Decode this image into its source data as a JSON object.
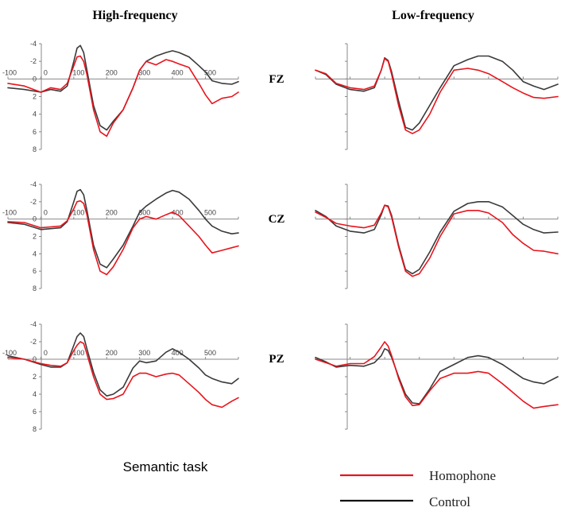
{
  "column_titles": [
    "High-frequency",
    "Low-frequency"
  ],
  "electrodes": [
    "FZ",
    "CZ",
    "PZ"
  ],
  "task_label": "Semantic task",
  "legend": [
    {
      "label": "Homophone",
      "color": "#e8141c"
    },
    {
      "label": "Control",
      "color": "#3a3a3a"
    }
  ],
  "chart_data": {
    "type": "line",
    "x_unit_ticks": [
      -100,
      0,
      100,
      200,
      300,
      400,
      500
    ],
    "xlim": [
      -100,
      600
    ],
    "ylim": [
      -4,
      8
    ],
    "y_ticks": [
      -4,
      -2,
      0,
      2,
      4,
      6,
      8
    ],
    "y_inverted": true,
    "panels": [
      {
        "column": "High-frequency",
        "electrode": "FZ",
        "series": [
          {
            "name": "Homophone",
            "x": [
              -100,
              -50,
              0,
              30,
              60,
              80,
              100,
              110,
              120,
              130,
              140,
              160,
              180,
              200,
              220,
              250,
              280,
              300,
              320,
              350,
              380,
              400,
              420,
              450,
              480,
              500,
              520,
              550,
              580,
              600
            ],
            "y": [
              0.5,
              0.8,
              1.5,
              1.0,
              1.2,
              0.5,
              -1.5,
              -2.5,
              -2.6,
              -2.0,
              -0.5,
              3.5,
              6.0,
              6.5,
              5.0,
              3.5,
              1.0,
              -1.0,
              -2.0,
              -1.6,
              -2.2,
              -2.0,
              -1.7,
              -1.3,
              0.5,
              1.8,
              2.8,
              2.2,
              2.0,
              1.5
            ]
          },
          {
            "name": "Control",
            "x": [
              -100,
              -50,
              0,
              30,
              60,
              80,
              100,
              110,
              120,
              130,
              140,
              160,
              180,
              200,
              220,
              250,
              280,
              300,
              320,
              350,
              380,
              400,
              420,
              450,
              480,
              500,
              520,
              550,
              580,
              600
            ],
            "y": [
              1.0,
              1.2,
              1.5,
              1.2,
              1.4,
              0.8,
              -2.0,
              -3.5,
              -3.8,
              -3.0,
              -1.0,
              3.0,
              5.3,
              5.8,
              4.8,
              3.5,
              1.0,
              -1.0,
              -2.0,
              -2.6,
              -3.0,
              -3.2,
              -3.0,
              -2.5,
              -1.5,
              -0.8,
              0.2,
              0.5,
              0.6,
              0.3
            ]
          }
        ]
      },
      {
        "column": "Low-frequency",
        "electrode": "FZ",
        "series": [
          {
            "name": "Homophone",
            "x": [
              -100,
              -70,
              -40,
              0,
              40,
              70,
              90,
              100,
              110,
              120,
              140,
              160,
              180,
              200,
              230,
              260,
              300,
              340,
              370,
              400,
              440,
              470,
              500,
              530,
              560,
              600
            ],
            "y": [
              -1.0,
              -0.6,
              0.5,
              1.0,
              1.2,
              0.8,
              -1.0,
              -2.3,
              -2.0,
              -0.5,
              3.0,
              5.8,
              6.2,
              5.8,
              4.0,
              1.5,
              -1.0,
              -1.2,
              -1.0,
              -0.6,
              0.3,
              1.0,
              1.6,
              2.1,
              2.2,
              2.0
            ]
          },
          {
            "name": "Control",
            "x": [
              -100,
              -70,
              -40,
              0,
              40,
              70,
              90,
              100,
              110,
              120,
              140,
              160,
              180,
              200,
              230,
              260,
              300,
              340,
              370,
              400,
              440,
              470,
              500,
              530,
              560,
              600
            ],
            "y": [
              -1.0,
              -0.5,
              0.6,
              1.2,
              1.4,
              1.0,
              -1.0,
              -2.4,
              -2.1,
              -0.8,
              2.5,
              5.5,
              5.8,
              5.0,
              3.0,
              1.0,
              -1.5,
              -2.2,
              -2.6,
              -2.6,
              -2.0,
              -1.0,
              0.3,
              0.8,
              1.2,
              0.6
            ]
          }
        ]
      },
      {
        "column": "High-frequency",
        "electrode": "CZ",
        "series": [
          {
            "name": "Homophone",
            "x": [
              -100,
              -50,
              0,
              30,
              60,
              80,
              100,
              110,
              120,
              130,
              140,
              160,
              180,
              200,
              220,
              250,
              280,
              300,
              320,
              350,
              380,
              400,
              420,
              450,
              480,
              500,
              520,
              550,
              580,
              600
            ],
            "y": [
              0.3,
              0.4,
              1.0,
              0.9,
              0.8,
              0.2,
              -1.2,
              -2.0,
              -2.1,
              -1.8,
              -0.5,
              3.5,
              6.0,
              6.4,
              5.5,
              3.5,
              1.0,
              0.0,
              -0.3,
              0.0,
              -0.5,
              -0.8,
              -0.4,
              0.8,
              2.0,
              3.0,
              3.9,
              3.6,
              3.3,
              3.1
            ]
          },
          {
            "name": "Control",
            "x": [
              -100,
              -50,
              0,
              30,
              60,
              80,
              100,
              110,
              120,
              130,
              140,
              160,
              180,
              200,
              220,
              250,
              280,
              300,
              320,
              350,
              380,
              400,
              420,
              450,
              480,
              500,
              520,
              550,
              580,
              600
            ],
            "y": [
              0.4,
              0.6,
              1.2,
              1.1,
              1.0,
              0.3,
              -2.0,
              -3.2,
              -3.4,
              -2.8,
              -1.0,
              3.0,
              5.2,
              5.6,
              4.6,
              3.0,
              0.8,
              -0.8,
              -1.5,
              -2.3,
              -3.0,
              -3.3,
              -3.1,
              -2.3,
              -1.0,
              0.0,
              0.8,
              1.4,
              1.7,
              1.6
            ]
          }
        ]
      },
      {
        "column": "Low-frequency",
        "electrode": "CZ",
        "series": [
          {
            "name": "Homophone",
            "x": [
              -100,
              -70,
              -40,
              0,
              40,
              70,
              90,
              100,
              110,
              120,
              140,
              160,
              180,
              200,
              230,
              260,
              300,
              340,
              370,
              400,
              440,
              470,
              500,
              530,
              560,
              600
            ],
            "y": [
              -0.8,
              -0.2,
              0.5,
              0.8,
              1.0,
              0.7,
              -0.7,
              -1.6,
              -1.4,
              -0.2,
              3.2,
              6.0,
              6.6,
              6.3,
              4.5,
              2.0,
              -0.6,
              -1.0,
              -1.0,
              -0.7,
              0.4,
              1.8,
              2.8,
              3.6,
              3.7,
              4.0
            ]
          },
          {
            "name": "Control",
            "x": [
              -100,
              -70,
              -40,
              0,
              40,
              70,
              90,
              100,
              110,
              120,
              140,
              160,
              180,
              200,
              230,
              260,
              300,
              340,
              370,
              400,
              440,
              470,
              500,
              530,
              560,
              600
            ],
            "y": [
              -1.0,
              -0.3,
              0.8,
              1.4,
              1.6,
              1.2,
              -0.5,
              -1.6,
              -1.5,
              -0.4,
              3.0,
              5.8,
              6.3,
              5.8,
              3.8,
              1.5,
              -0.9,
              -1.8,
              -2.0,
              -2.0,
              -1.4,
              -0.4,
              0.6,
              1.2,
              1.6,
              1.5
            ]
          }
        ]
      },
      {
        "column": "High-frequency",
        "electrode": "PZ",
        "series": [
          {
            "name": "Homophone",
            "x": [
              -100,
              -50,
              0,
              30,
              60,
              80,
              100,
              110,
              120,
              130,
              140,
              160,
              180,
              200,
              220,
              250,
              280,
              300,
              320,
              350,
              380,
              400,
              420,
              450,
              480,
              500,
              520,
              550,
              580,
              600
            ],
            "y": [
              -0.2,
              0.0,
              0.5,
              0.7,
              0.8,
              0.4,
              -1.0,
              -1.6,
              -2.0,
              -1.8,
              -0.6,
              2.0,
              4.0,
              4.6,
              4.5,
              4.0,
              2.0,
              1.6,
              1.6,
              2.0,
              1.7,
              1.6,
              1.8,
              2.8,
              3.8,
              4.6,
              5.2,
              5.5,
              4.8,
              4.4
            ]
          },
          {
            "name": "Control",
            "x": [
              -100,
              -50,
              0,
              30,
              60,
              80,
              100,
              110,
              120,
              130,
              140,
              160,
              180,
              200,
              220,
              250,
              280,
              300,
              320,
              350,
              380,
              400,
              420,
              450,
              480,
              500,
              520,
              550,
              580,
              600
            ],
            "y": [
              -0.4,
              0.0,
              0.6,
              0.9,
              0.9,
              0.4,
              -1.6,
              -2.6,
              -3.0,
              -2.6,
              -1.2,
              1.5,
              3.5,
              4.2,
              4.0,
              3.2,
              1.0,
              0.2,
              0.4,
              0.2,
              -0.8,
              -1.2,
              -0.8,
              0.0,
              1.0,
              1.8,
              2.2,
              2.6,
              2.8,
              2.2
            ]
          }
        ]
      },
      {
        "column": "Low-frequency",
        "electrode": "PZ",
        "series": [
          {
            "name": "Homophone",
            "x": [
              -100,
              -70,
              -40,
              0,
              40,
              70,
              90,
              100,
              110,
              120,
              140,
              160,
              180,
              200,
              230,
              260,
              300,
              340,
              370,
              400,
              440,
              470,
              500,
              530,
              560,
              600
            ],
            "y": [
              0.0,
              0.4,
              0.8,
              0.5,
              0.5,
              -0.3,
              -1.4,
              -2.0,
              -1.5,
              -0.4,
              2.2,
              4.3,
              5.3,
              5.2,
              3.6,
              2.2,
              1.6,
              1.6,
              1.4,
              1.6,
              2.8,
              3.8,
              4.8,
              5.6,
              5.4,
              5.2
            ]
          },
          {
            "name": "Control",
            "x": [
              -100,
              -70,
              -40,
              0,
              40,
              70,
              90,
              100,
              110,
              120,
              140,
              160,
              180,
              200,
              230,
              260,
              300,
              340,
              370,
              400,
              440,
              470,
              500,
              530,
              560,
              600
            ],
            "y": [
              -0.2,
              0.3,
              0.9,
              0.7,
              0.8,
              0.4,
              -0.4,
              -1.2,
              -1.0,
              -0.2,
              2.0,
              4.0,
              5.0,
              5.1,
              3.4,
              1.4,
              0.6,
              -0.2,
              -0.4,
              -0.2,
              0.6,
              1.4,
              2.2,
              2.6,
              2.8,
              2.0
            ]
          }
        ]
      }
    ]
  }
}
